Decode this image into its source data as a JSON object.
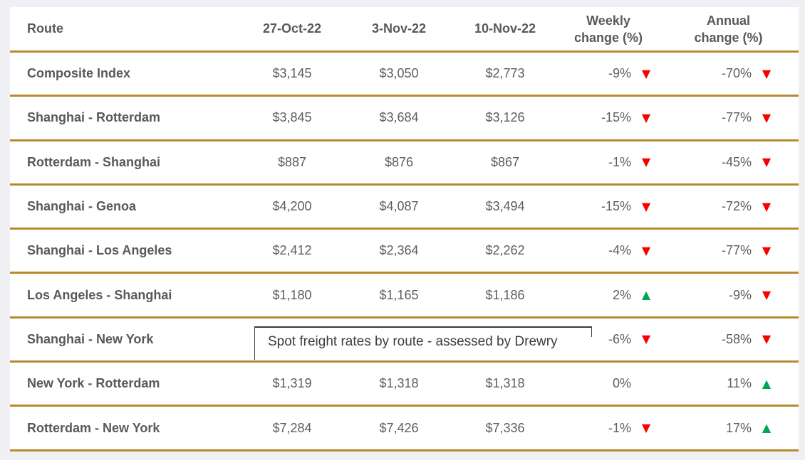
{
  "colors": {
    "gold_divider": "#b9892e",
    "down_red": "#f80000",
    "up_green": "#00a651",
    "text_gray": "#5d5d5d",
    "page_background": "#eef0f3"
  },
  "icons": {
    "down": "▼",
    "up": "▲",
    "none": ""
  },
  "overlay": {
    "text": "Spot freight rates by route - assessed by Drewry"
  },
  "table": {
    "header": {
      "route": "Route",
      "col_27_oct": "27-Oct-22",
      "col_3_nov": "3-Nov-22",
      "col_10_nov": "10-Nov-22",
      "weekly_line1": "Weekly",
      "weekly_line2": "change (%)",
      "annual_line1": "Annual",
      "annual_line2": "change (%)"
    },
    "rows": [
      {
        "route": "Composite Index",
        "oct27": "$3,145",
        "nov3": "$3,050",
        "nov10": "$2,773",
        "weekly": {
          "value": "-9%",
          "direction": "down"
        },
        "annual": {
          "value": "-70%",
          "direction": "down"
        }
      },
      {
        "route": "Shanghai - Rotterdam",
        "oct27": "$3,845",
        "nov3": "$3,684",
        "nov10": "$3,126",
        "weekly": {
          "value": "-15%",
          "direction": "down"
        },
        "annual": {
          "value": "-77%",
          "direction": "down"
        }
      },
      {
        "route": "Rotterdam - Shanghai",
        "oct27": "$887",
        "nov3": "$876",
        "nov10": "$867",
        "weekly": {
          "value": "-1%",
          "direction": "down"
        },
        "annual": {
          "value": "-45%",
          "direction": "down"
        }
      },
      {
        "route": "Shanghai - Genoa",
        "oct27": "$4,200",
        "nov3": "$4,087",
        "nov10": "$3,494",
        "weekly": {
          "value": "-15%",
          "direction": "down"
        },
        "annual": {
          "value": "-72%",
          "direction": "down"
        }
      },
      {
        "route": "Shanghai - Los Angeles",
        "oct27": "$2,412",
        "nov3": "$2,364",
        "nov10": "$2,262",
        "weekly": {
          "value": "-4%",
          "direction": "down"
        },
        "annual": {
          "value": "-77%",
          "direction": "down"
        }
      },
      {
        "route": "Los Angeles - Shanghai",
        "oct27": "$1,180",
        "nov3": "$1,165",
        "nov10": "$1,186",
        "weekly": {
          "value": "2%",
          "direction": "up"
        },
        "annual": {
          "value": "-9%",
          "direction": "down"
        }
      },
      {
        "route": "Shanghai - New York",
        "oct27": "",
        "nov3": "",
        "nov10": "",
        "weekly": {
          "value": "-6%",
          "direction": "down"
        },
        "annual": {
          "value": "-58%",
          "direction": "down"
        }
      },
      {
        "route": "New York - Rotterdam",
        "oct27": "$1,319",
        "nov3": "$1,318",
        "nov10": "$1,318",
        "weekly": {
          "value": "0%",
          "direction": "none"
        },
        "annual": {
          "value": "11%",
          "direction": "up"
        }
      },
      {
        "route": "Rotterdam - New York",
        "oct27": "$7,284",
        "nov3": "$7,426",
        "nov10": "$7,336",
        "weekly": {
          "value": "-1%",
          "direction": "down"
        },
        "annual": {
          "value": "17%",
          "direction": "up"
        }
      }
    ]
  },
  "chart_data": {
    "type": "table",
    "title": "Spot freight rates by route - assessed by Drewry",
    "columns": [
      "Route",
      "27-Oct-22",
      "3-Nov-22",
      "10-Nov-22",
      "Weekly change (%)",
      "Annual change (%)"
    ],
    "rows": [
      [
        "Composite Index",
        "$3,145",
        "$3,050",
        "$2,773",
        "-9% down",
        "-70% down"
      ],
      [
        "Shanghai - Rotterdam",
        "$3,845",
        "$3,684",
        "$3,126",
        "-15% down",
        "-77% down"
      ],
      [
        "Rotterdam - Shanghai",
        "$887",
        "$876",
        "$867",
        "-1% down",
        "-45% down"
      ],
      [
        "Shanghai - Genoa",
        "$4,200",
        "$4,087",
        "$3,494",
        "-15% down",
        "-72% down"
      ],
      [
        "Shanghai - Los Angeles",
        "$2,412",
        "$2,364",
        "$2,262",
        "-4% down",
        "-77% down"
      ],
      [
        "Los Angeles - Shanghai",
        "$1,180",
        "$1,165",
        "$1,186",
        "2% up",
        "-9% down"
      ],
      [
        "Shanghai - New York",
        "",
        "",
        "",
        "-6% down",
        "-58% down"
      ],
      [
        "New York - Rotterdam",
        "$1,319",
        "$1,318",
        "$1,318",
        "0%",
        "11% up"
      ],
      [
        "Rotterdam - New York",
        "$7,284",
        "$7,426",
        "$7,336",
        "-1% down",
        "17% up"
      ]
    ]
  }
}
